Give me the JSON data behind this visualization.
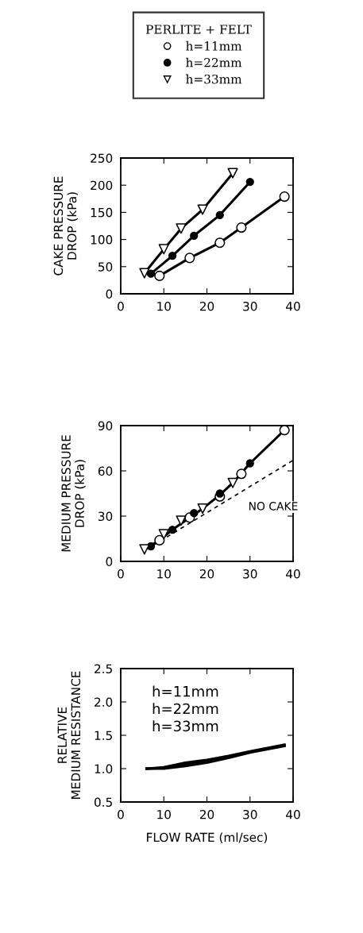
{
  "chart_data": [
    {
      "type": "line",
      "ylabel": "CAKE PRESSURE\nDROP (kPa)",
      "legend_title": "PERLITE + FELT",
      "legend": "top",
      "xlim": [
        0,
        40
      ],
      "xticks": [
        0,
        10,
        20,
        30,
        40
      ],
      "ylim": [
        0,
        250
      ],
      "yticks": [
        0,
        50,
        100,
        150,
        200,
        250
      ],
      "grid": false,
      "series": [
        {
          "color": "#000000",
          "marker": "none",
          "x": [
            9,
            16,
            23,
            28,
            38
          ],
          "values": [
            33,
            66,
            94,
            122,
            179
          ]
        },
        {
          "color": "#000000",
          "marker": "none",
          "x": [
            7,
            12,
            17,
            23,
            30
          ],
          "values": [
            37,
            70,
            107,
            145,
            206
          ]
        },
        {
          "color": "#000000",
          "marker": "none",
          "x": [
            5.5,
            10,
            14,
            19,
            26
          ],
          "values": [
            38,
            82,
            120,
            155,
            222
          ]
        },
        {
          "type": "scatter",
          "name": "h=11mm",
          "color": "#ffffff",
          "marker": "circle",
          "x": [
            9,
            16,
            23,
            28,
            38
          ],
          "values": [
            33,
            66,
            94,
            122,
            179
          ]
        },
        {
          "type": "scatter",
          "name": "h=22mm",
          "color": "#000000",
          "marker": "circle",
          "x": [
            7,
            12,
            17,
            23,
            30
          ],
          "values": [
            37,
            70,
            107,
            145,
            206
          ]
        },
        {
          "type": "scatter",
          "name": "h=33mm",
          "color": "#ffffff",
          "marker": "triangle",
          "x": [
            5.5,
            10,
            14,
            19,
            26
          ],
          "values": [
            38,
            82,
            120,
            155,
            222
          ]
        }
      ]
    },
    {
      "type": "line",
      "ylabel": "MEDIUM PRESSURE\nDROP (kPa)",
      "xlim": [
        0,
        40
      ],
      "xticks": [
        0,
        10,
        20,
        30,
        40
      ],
      "ylim": [
        0,
        90
      ],
      "yticks": [
        0,
        30,
        60,
        90
      ],
      "grid": false,
      "annotations": [
        "NO CAKE"
      ],
      "series": [
        {
          "color": "#000000",
          "marker": "none",
          "x": [
            5.5,
            9,
            12,
            16,
            19,
            23,
            26,
            30,
            38
          ],
          "values": [
            8,
            14,
            21,
            29,
            35,
            44,
            52,
            65,
            87
          ]
        },
        {
          "color": "#000000",
          "marker": "none",
          "line_style": "dashed",
          "x": [
            6,
            40
          ],
          "values": [
            8,
            67
          ]
        },
        {
          "type": "scatter",
          "color": "#ffffff",
          "marker": "circle",
          "x": [
            9,
            16,
            23,
            28,
            38
          ],
          "values": [
            14,
            29,
            43,
            58,
            87
          ]
        },
        {
          "type": "scatter",
          "color": "#000000",
          "marker": "circle",
          "x": [
            7,
            12,
            17,
            23,
            30
          ],
          "values": [
            10,
            21,
            32,
            45,
            65
          ]
        },
        {
          "type": "scatter",
          "color": "#ffffff",
          "marker": "triangle",
          "x": [
            5.5,
            10,
            14,
            19,
            26
          ],
          "values": [
            8,
            18,
            27,
            35,
            52
          ]
        }
      ]
    },
    {
      "type": "line",
      "xlabel": "FLOW RATE (ml/sec)",
      "ylabel": "RELATIVE\nMEDIUM RESISTANCE",
      "xlim": [
        0,
        40
      ],
      "xticks": [
        0,
        10,
        20,
        30,
        40
      ],
      "ylim": [
        0.5,
        2.5
      ],
      "yticks": [
        0.5,
        {
          "value": 1,
          "label": "1.0"
        },
        1.5,
        {
          "value": 2,
          "label": "2.0"
        },
        2.5
      ],
      "grid": false,
      "annotations": [
        "h=11mm",
        "h=22mm",
        "h=33mm"
      ],
      "series": [
        {
          "color": "#000000",
          "marker": "none",
          "x": [
            6,
            10,
            15,
            20,
            25,
            30,
            38
          ],
          "values": [
            1.0,
            1.0,
            1.04,
            1.09,
            1.16,
            1.24,
            1.34
          ]
        },
        {
          "color": "#000000",
          "marker": "none",
          "x": [
            6,
            10,
            15,
            20,
            25,
            30,
            38
          ],
          "values": [
            1.0,
            1.01,
            1.07,
            1.12,
            1.18,
            1.25,
            1.35
          ]
        },
        {
          "color": "#000000",
          "marker": "none",
          "x": [
            6,
            10,
            15,
            20,
            25,
            30,
            38
          ],
          "values": [
            1.0,
            1.02,
            1.09,
            1.13,
            1.19,
            1.26,
            1.36
          ]
        }
      ]
    }
  ]
}
